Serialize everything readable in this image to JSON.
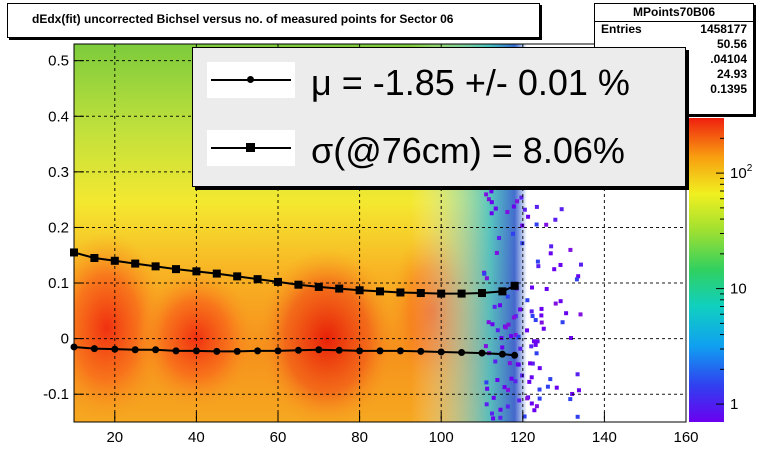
{
  "title": "dEdx(fit) uncorrected Bichsel versus no. of measured points for Sector 06",
  "stats": {
    "name": "MPoints70B06",
    "rows": [
      {
        "label": "Entries",
        "value": "1458177"
      },
      {
        "label": "",
        "value": "50.56"
      },
      {
        "label": "",
        "value": ".04104"
      },
      {
        "label": "",
        "value": "24.93"
      },
      {
        "label": "",
        "value": "0.1395"
      }
    ]
  },
  "legend": {
    "mu_text": "μ  = -1.85 +/-  0.01 %",
    "sigma_text": "σ(@76cm) =  8.06%"
  },
  "colors": {
    "frame": "#000000",
    "legend_bg": "#ececec",
    "points": "#000000"
  },
  "chart_data": {
    "type": "heatmap",
    "title": "dEdx(fit) uncorrected Bichsel versus no. of measured points for Sector 06",
    "xlim": [
      10,
      160
    ],
    "ylim": [
      -0.15,
      0.53
    ],
    "x_ticks": [
      20,
      40,
      60,
      80,
      100,
      120,
      140,
      160
    ],
    "y_ticks": [
      -0.1,
      0,
      0.1,
      0.2,
      0.3,
      0.4,
      0.5
    ],
    "z_scale": "log",
    "z_ticks": [
      {
        "value": 1,
        "label": "1"
      },
      {
        "value": 10,
        "label": "10"
      },
      {
        "value": 100,
        "label": "10^2"
      }
    ],
    "grid": true,
    "series": [
      {
        "name": "μ",
        "marker": "circle",
        "x": [
          10,
          15,
          20,
          25,
          30,
          35,
          40,
          45,
          50,
          55,
          60,
          65,
          70,
          75,
          80,
          85,
          90,
          95,
          100,
          105,
          110,
          115,
          118
        ],
        "y": [
          -0.015,
          -0.018,
          -0.019,
          -0.02,
          -0.02,
          -0.022,
          -0.022,
          -0.023,
          -0.023,
          -0.022,
          -0.022,
          -0.021,
          -0.02,
          -0.021,
          -0.022,
          -0.022,
          -0.022,
          -0.023,
          -0.024,
          -0.025,
          -0.026,
          -0.028,
          -0.03
        ]
      },
      {
        "name": "σ(@76cm)",
        "marker": "square",
        "x": [
          10,
          15,
          20,
          25,
          30,
          35,
          40,
          45,
          50,
          55,
          60,
          65,
          70,
          75,
          80,
          85,
          90,
          95,
          100,
          105,
          110,
          115,
          118
        ],
        "y": [
          0.155,
          0.145,
          0.14,
          0.135,
          0.13,
          0.125,
          0.121,
          0.117,
          0.112,
          0.107,
          0.102,
          0.097,
          0.093,
          0.09,
          0.087,
          0.085,
          0.083,
          0.082,
          0.081,
          0.081,
          0.082,
          0.085,
          0.095
        ]
      }
    ]
  }
}
